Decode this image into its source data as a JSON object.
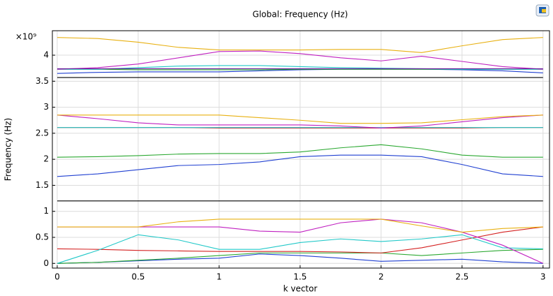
{
  "chart_data": {
    "type": "line",
    "title": "Global: Frequency (Hz)",
    "x_label": "k vector",
    "y_label": "Frequency (Hz)",
    "y_exponent": "×10⁹",
    "x": [
      0,
      0.25,
      0.5,
      0.75,
      1,
      1.25,
      1.5,
      1.75,
      2,
      2.25,
      2.5,
      2.75,
      3
    ],
    "xlim": [
      -0.03,
      3.04
    ],
    "ylim": [
      -0.09,
      4.47
    ],
    "xticks": [
      0,
      0.5,
      1,
      1.5,
      2,
      2.5,
      3
    ],
    "yticks": [
      0,
      0.5,
      1,
      1.5,
      2,
      2.5,
      3,
      3.5,
      4
    ],
    "grid": true,
    "series": [
      {
        "color": "#1f3fd1",
        "values": [
          0,
          0.02,
          0.05,
          0.08,
          0.1,
          0.18,
          0.15,
          0.1,
          0.04,
          0.06,
          0.08,
          0.03,
          0
        ]
      },
      {
        "color": "#2aa830",
        "values": [
          0,
          0.02,
          0.06,
          0.1,
          0.15,
          0.2,
          0.2,
          0.2,
          0.2,
          0.15,
          0.2,
          0.25,
          0.27
        ]
      },
      {
        "color": "#d42020",
        "values": [
          0.28,
          0.27,
          0.25,
          0.24,
          0.23,
          0.23,
          0.23,
          0.22,
          0.2,
          0.3,
          0.45,
          0.6,
          0.7
        ]
      },
      {
        "color": "#20c8c8",
        "values": [
          0,
          0.25,
          0.55,
          0.45,
          0.27,
          0.27,
          0.4,
          0.47,
          0.42,
          0.47,
          0.55,
          0.3,
          0.28
        ]
      },
      {
        "color": "#c020c0",
        "values": [
          0.7,
          0.7,
          0.7,
          0.7,
          0.7,
          0.62,
          0.6,
          0.78,
          0.85,
          0.78,
          0.6,
          0.35,
          0
        ]
      },
      {
        "color": "#e8b010",
        "values": [
          0.7,
          0.7,
          0.7,
          0.8,
          0.85,
          0.85,
          0.85,
          0.85,
          0.85,
          0.72,
          0.6,
          0.67,
          0.7
        ]
      },
      {
        "color": "#000000",
        "values": [
          1.2,
          1.2,
          1.2,
          1.2,
          1.2,
          1.2,
          1.2,
          1.2,
          1.2,
          1.2,
          1.2,
          1.2,
          1.2
        ]
      },
      {
        "color": "#1f3fd1",
        "values": [
          1.67,
          1.72,
          1.8,
          1.88,
          1.9,
          1.95,
          2.05,
          2.08,
          2.08,
          2.05,
          1.9,
          1.72,
          1.67
        ]
      },
      {
        "color": "#2aa830",
        "values": [
          2.04,
          2.05,
          2.07,
          2.1,
          2.11,
          2.11,
          2.14,
          2.22,
          2.28,
          2.2,
          2.08,
          2.04,
          2.04
        ]
      },
      {
        "color": "#d42020",
        "values": [
          2.61,
          2.61,
          2.61,
          2.61,
          2.6,
          2.6,
          2.6,
          2.6,
          2.6,
          2.6,
          2.6,
          2.61,
          2.61
        ]
      },
      {
        "color": "#20c8c8",
        "values": [
          2.61,
          2.61,
          2.61,
          2.61,
          2.61,
          2.61,
          2.61,
          2.61,
          2.61,
          2.61,
          2.61,
          2.61,
          2.61
        ]
      },
      {
        "color": "#c020c0",
        "values": [
          2.85,
          2.78,
          2.7,
          2.66,
          2.66,
          2.66,
          2.66,
          2.64,
          2.6,
          2.64,
          2.72,
          2.8,
          2.85
        ]
      },
      {
        "color": "#e8b010",
        "values": [
          2.85,
          2.85,
          2.85,
          2.85,
          2.85,
          2.8,
          2.75,
          2.69,
          2.69,
          2.7,
          2.76,
          2.82,
          2.85
        ]
      },
      {
        "color": "#000000",
        "values": [
          3.57,
          3.57,
          3.57,
          3.57,
          3.57,
          3.57,
          3.57,
          3.57,
          3.57,
          3.57,
          3.57,
          3.57,
          3.57
        ]
      },
      {
        "color": "#1f3fd1",
        "values": [
          3.65,
          3.67,
          3.68,
          3.68,
          3.68,
          3.7,
          3.72,
          3.73,
          3.73,
          3.73,
          3.72,
          3.7,
          3.66
        ]
      },
      {
        "color": "#2aa830",
        "values": [
          3.73,
          3.73,
          3.72,
          3.72,
          3.72,
          3.72,
          3.73,
          3.73,
          3.73,
          3.73,
          3.73,
          3.73,
          3.73
        ]
      },
      {
        "color": "#20c8c8",
        "values": [
          3.73,
          3.73,
          3.76,
          3.79,
          3.8,
          3.8,
          3.78,
          3.76,
          3.75,
          3.74,
          3.73,
          3.73,
          3.73
        ]
      },
      {
        "color": "#c020c0",
        "values": [
          3.73,
          3.76,
          3.83,
          3.95,
          4.07,
          4.08,
          4.03,
          3.95,
          3.89,
          3.98,
          3.88,
          3.78,
          3.73
        ]
      },
      {
        "color": "#e8b010",
        "values": [
          4.34,
          4.32,
          4.25,
          4.15,
          4.1,
          4.1,
          4.1,
          4.11,
          4.11,
          4.05,
          4.18,
          4.3,
          4.34
        ]
      },
      {
        "color": "#7020a0",
        "values": [
          3.74,
          3.74,
          3.74,
          3.74,
          3.74,
          3.74,
          3.74,
          3.74,
          3.74,
          3.74,
          3.74,
          3.74,
          3.74
        ]
      }
    ]
  }
}
